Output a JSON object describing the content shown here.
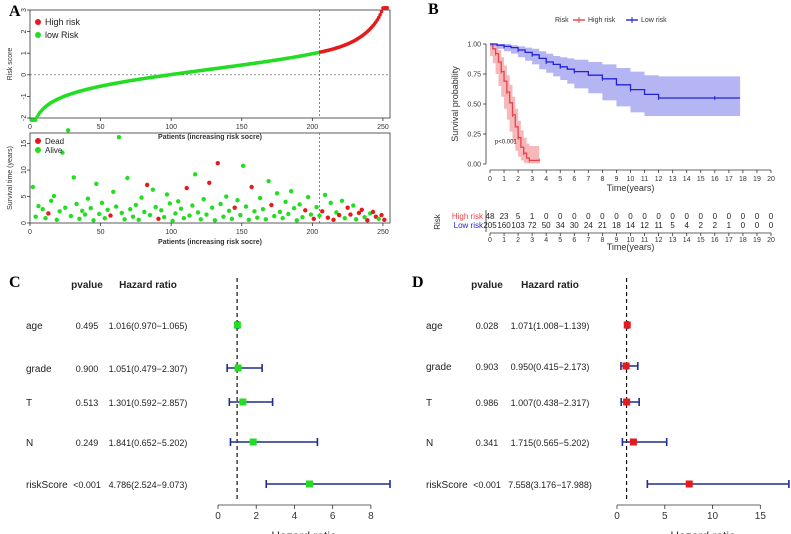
{
  "panel_labels": {
    "a": "A",
    "b": "B",
    "c": "C",
    "d": "D"
  },
  "chart_data": [
    {
      "id": "A_top",
      "type": "scatter",
      "title": "",
      "xlabel": "Patients (increasing risk socre)",
      "ylabel": "Risk score",
      "xlim": [
        0,
        255
      ],
      "ylim": [
        -2,
        3
      ],
      "xticks": [
        0,
        50,
        100,
        150,
        200,
        250
      ],
      "yticks": [
        -2,
        -1,
        0,
        1,
        2,
        3
      ],
      "cutoff_x": 205,
      "n_patients": 253,
      "n_high_risk": 48,
      "risk_score_range": [
        -2.1,
        3.1
      ],
      "legend": [
        {
          "name": "High risk",
          "color": "#e41a1c"
        },
        {
          "name": "low Risk",
          "color": "#22dd22"
        }
      ]
    },
    {
      "id": "A_bottom",
      "type": "scatter",
      "xlabel": "Patients (increasing risk socre)",
      "ylabel": "Survival time (years)",
      "xlim": [
        0,
        255
      ],
      "ylim": [
        0,
        17
      ],
      "xticks": [
        0,
        50,
        100,
        150,
        200,
        250
      ],
      "yticks": [
        0,
        5,
        10,
        15
      ],
      "cutoff_x": 205,
      "legend": [
        {
          "name": "Dead",
          "color": "#e41a1c"
        },
        {
          "name": "Alive",
          "color": "#22dd22"
        }
      ],
      "points": [
        [
          2,
          6.8,
          "a"
        ],
        [
          4,
          1.2,
          "a"
        ],
        [
          6,
          3.2,
          "a"
        ],
        [
          9,
          2.6,
          "a"
        ],
        [
          11,
          0.9,
          "a"
        ],
        [
          13,
          1.8,
          "d"
        ],
        [
          15,
          4.2,
          "a"
        ],
        [
          17,
          5.1,
          "a"
        ],
        [
          19,
          0.6,
          "a"
        ],
        [
          21,
          2.2,
          "a"
        ],
        [
          23,
          13.3,
          "a"
        ],
        [
          25,
          2.9,
          "a"
        ],
        [
          27,
          17.5,
          "a"
        ],
        [
          29,
          1.3,
          "a"
        ],
        [
          31,
          8.6,
          "a"
        ],
        [
          33,
          3.6,
          "a"
        ],
        [
          35,
          0.8,
          "a"
        ],
        [
          37,
          2.3,
          "a"
        ],
        [
          39,
          1.6,
          "a"
        ],
        [
          41,
          4.6,
          "a"
        ],
        [
          43,
          2.8,
          "a"
        ],
        [
          45,
          0.5,
          "a"
        ],
        [
          47,
          7.4,
          "a"
        ],
        [
          49,
          1.7,
          "a"
        ],
        [
          51,
          3.8,
          "a"
        ],
        [
          53,
          0.9,
          "a"
        ],
        [
          55,
          2.5,
          "a"
        ],
        [
          57,
          1.4,
          "d"
        ],
        [
          59,
          5.9,
          "a"
        ],
        [
          61,
          3.1,
          "a"
        ],
        [
          63,
          16.2,
          "a"
        ],
        [
          65,
          1.9,
          "a"
        ],
        [
          67,
          0.7,
          "a"
        ],
        [
          69,
          8.5,
          "a"
        ],
        [
          71,
          2.6,
          "a"
        ],
        [
          73,
          1.2,
          "a"
        ],
        [
          75,
          3.4,
          "a"
        ],
        [
          77,
          0.6,
          "a"
        ],
        [
          79,
          4.8,
          "a"
        ],
        [
          81,
          2.1,
          "a"
        ],
        [
          83,
          7.2,
          "d"
        ],
        [
          85,
          1.5,
          "a"
        ],
        [
          87,
          6.3,
          "a"
        ],
        [
          89,
          3.0,
          "a"
        ],
        [
          91,
          0.8,
          "d"
        ],
        [
          93,
          2.4,
          "a"
        ],
        [
          95,
          1.1,
          "a"
        ],
        [
          97,
          5.4,
          "a"
        ],
        [
          99,
          3.7,
          "a"
        ],
        [
          101,
          0.4,
          "a"
        ],
        [
          103,
          1.8,
          "a"
        ],
        [
          105,
          4.1,
          "a"
        ],
        [
          107,
          2.7,
          "a"
        ],
        [
          109,
          0.9,
          "a"
        ],
        [
          111,
          6.6,
          "d"
        ],
        [
          113,
          1.4,
          "a"
        ],
        [
          115,
          3.3,
          "a"
        ],
        [
          117,
          9.2,
          "a"
        ],
        [
          119,
          2.0,
          "a"
        ],
        [
          121,
          0.7,
          "a"
        ],
        [
          123,
          4.5,
          "a"
        ],
        [
          125,
          1.6,
          "a"
        ],
        [
          127,
          7.6,
          "d"
        ],
        [
          129,
          2.9,
          "a"
        ],
        [
          131,
          0.5,
          "a"
        ],
        [
          133,
          11.3,
          "d"
        ],
        [
          135,
          3.6,
          "a"
        ],
        [
          137,
          1.2,
          "a"
        ],
        [
          139,
          5.0,
          "a"
        ],
        [
          141,
          2.3,
          "a"
        ],
        [
          143,
          0.8,
          "a"
        ],
        [
          145,
          2.9,
          "d"
        ],
        [
          147,
          4.3,
          "a"
        ],
        [
          149,
          1.5,
          "a"
        ],
        [
          151,
          10.8,
          "a"
        ],
        [
          153,
          3.1,
          "a"
        ],
        [
          155,
          0.6,
          "a"
        ],
        [
          157,
          6.8,
          "d"
        ],
        [
          159,
          2.2,
          "a"
        ],
        [
          161,
          1.0,
          "a"
        ],
        [
          163,
          4.7,
          "a"
        ],
        [
          165,
          2.6,
          "a"
        ],
        [
          167,
          0.7,
          "a"
        ],
        [
          169,
          7.9,
          "a"
        ],
        [
          171,
          3.4,
          "d"
        ],
        [
          173,
          1.3,
          "a"
        ],
        [
          175,
          5.6,
          "a"
        ],
        [
          177,
          2.1,
          "a"
        ],
        [
          179,
          0.9,
          "a"
        ],
        [
          181,
          4.0,
          "a"
        ],
        [
          183,
          1.7,
          "a"
        ],
        [
          185,
          6.0,
          "a"
        ],
        [
          187,
          2.8,
          "a"
        ],
        [
          189,
          0.5,
          "a"
        ],
        [
          191,
          3.5,
          "a"
        ],
        [
          193,
          1.1,
          "a"
        ],
        [
          195,
          2.4,
          "d"
        ],
        [
          197,
          4.9,
          "a"
        ],
        [
          199,
          1.6,
          "a"
        ],
        [
          201,
          0.8,
          "d"
        ],
        [
          203,
          3.0,
          "a"
        ],
        [
          205,
          1.4,
          "a"
        ],
        [
          207,
          2.2,
          "d"
        ],
        [
          209,
          5.3,
          "a"
        ],
        [
          211,
          1.0,
          "d"
        ],
        [
          213,
          3.8,
          "a"
        ],
        [
          215,
          0.6,
          "d"
        ],
        [
          217,
          2.0,
          "a"
        ],
        [
          219,
          1.5,
          "d"
        ],
        [
          221,
          4.2,
          "a"
        ],
        [
          223,
          0.9,
          "a"
        ],
        [
          225,
          2.9,
          "d"
        ],
        [
          227,
          1.6,
          "d"
        ],
        [
          229,
          3.3,
          "a"
        ],
        [
          231,
          0.7,
          "a"
        ],
        [
          233,
          1.9,
          "d"
        ],
        [
          235,
          2.5,
          "d"
        ],
        [
          237,
          1.1,
          "a"
        ],
        [
          239,
          0.5,
          "d"
        ],
        [
          241,
          1.8,
          "a"
        ],
        [
          243,
          2.1,
          "d"
        ],
        [
          245,
          1.2,
          "d"
        ],
        [
          247,
          0.8,
          "a"
        ],
        [
          249,
          1.5,
          "d"
        ],
        [
          251,
          0.6,
          "d"
        ]
      ]
    },
    {
      "id": "B_km",
      "type": "line",
      "xlabel": "Time(years)",
      "ylabel": "Survival probability",
      "xlim": [
        0,
        20
      ],
      "ylim": [
        0,
        1
      ],
      "xticks": [
        0,
        1,
        2,
        3,
        4,
        5,
        6,
        7,
        8,
        9,
        10,
        11,
        12,
        13,
        14,
        15,
        16,
        17,
        18,
        19,
        20
      ],
      "yticks": [
        0.0,
        0.25,
        0.5,
        0.75,
        1.0
      ],
      "ytick_labels": [
        "0.00",
        "0.25",
        "0.50",
        "0.75",
        "1.00"
      ],
      "legend_title": "Risk",
      "pvalue_text": "p<0.001",
      "series": [
        {
          "name": "High risk",
          "color": "#e8424a",
          "fill": "#f4a0a3",
          "x": [
            0,
            0.2,
            0.4,
            0.6,
            0.8,
            1.0,
            1.2,
            1.4,
            1.6,
            1.8,
            2.0,
            2.2,
            2.4,
            2.6,
            2.8,
            3.0,
            3.5
          ],
          "y": [
            1.0,
            0.96,
            0.92,
            0.85,
            0.77,
            0.69,
            0.6,
            0.51,
            0.41,
            0.31,
            0.22,
            0.14,
            0.09,
            0.05,
            0.03,
            0.03,
            0.03
          ],
          "lower": [
            1.0,
            0.9,
            0.84,
            0.75,
            0.65,
            0.56,
            0.46,
            0.37,
            0.27,
            0.18,
            0.11,
            0.06,
            0.03,
            0.01,
            0.005,
            0.005,
            0.005
          ],
          "upper": [
            1.0,
            1.0,
            0.99,
            0.95,
            0.89,
            0.82,
            0.74,
            0.66,
            0.56,
            0.46,
            0.36,
            0.28,
            0.22,
            0.17,
            0.15,
            0.15,
            0.15
          ]
        },
        {
          "name": "Low risk",
          "color": "#2323d6",
          "fill": "#9c9cf0",
          "x": [
            0,
            0.5,
            1.0,
            1.5,
            2.0,
            2.5,
            3.0,
            3.5,
            4.0,
            4.5,
            5.0,
            5.5,
            6.0,
            7.0,
            8.0,
            9.0,
            10.0,
            11.0,
            12.0,
            14.0,
            16.0,
            17.8
          ],
          "y": [
            1.0,
            0.99,
            0.98,
            0.97,
            0.95,
            0.93,
            0.91,
            0.88,
            0.85,
            0.83,
            0.81,
            0.79,
            0.77,
            0.74,
            0.71,
            0.66,
            0.62,
            0.58,
            0.55,
            0.55,
            0.55,
            0.55
          ],
          "lower": [
            1.0,
            0.98,
            0.96,
            0.94,
            0.92,
            0.89,
            0.86,
            0.83,
            0.79,
            0.76,
            0.73,
            0.7,
            0.67,
            0.63,
            0.59,
            0.53,
            0.48,
            0.43,
            0.4,
            0.4,
            0.4,
            0.4
          ],
          "upper": [
            1.0,
            1.0,
            1.0,
            0.99,
            0.98,
            0.97,
            0.96,
            0.94,
            0.92,
            0.9,
            0.89,
            0.88,
            0.87,
            0.85,
            0.83,
            0.8,
            0.77,
            0.74,
            0.73,
            0.73,
            0.73,
            0.73
          ]
        }
      ]
    },
    {
      "id": "B_table",
      "type": "table",
      "row_title": "Risk",
      "xlabel": "Time(years)",
      "columns": [
        0,
        1,
        2,
        3,
        4,
        5,
        6,
        7,
        8,
        9,
        10,
        11,
        12,
        13,
        14,
        15,
        16,
        17,
        18,
        19,
        20
      ],
      "rows": [
        {
          "label": "High risk",
          "color": "#e8424a",
          "values": [
            "48",
            "23",
            "5",
            "1",
            "0",
            "0",
            "0",
            "0",
            "0",
            "0",
            "0",
            "0",
            "0",
            "0",
            "0",
            "0",
            "0",
            "0",
            "0",
            "0",
            "0"
          ]
        },
        {
          "label": "Low risk",
          "color": "#2323d6",
          "values": [
            "205",
            "160",
            "103",
            "72",
            "50",
            "34",
            "30",
            "24",
            "21",
            "18",
            "14",
            "12",
            "11",
            "5",
            "4",
            "2",
            "2",
            "1",
            "0",
            "0",
            "0"
          ]
        }
      ]
    },
    {
      "id": "C_forest",
      "type": "forest",
      "header_pvalue": "pvalue",
      "header_hr": "Hazard ratio",
      "xlabel": "Hazard ratio",
      "xlim": [
        0,
        9
      ],
      "xticks": [
        0,
        2,
        4,
        6,
        8
      ],
      "ref_line": 1,
      "marker_color": "#22dd22",
      "ci_color": "#1f2e8c",
      "rows": [
        {
          "label": "age",
          "pvalue": "0.495",
          "text": "1.016(0.970−1.065)",
          "hr": 1.016,
          "lo": 0.97,
          "hi": 1.065
        },
        {
          "label": "grade",
          "pvalue": "0.900",
          "text": "1.051(0.479−2.307)",
          "hr": 1.051,
          "lo": 0.479,
          "hi": 2.307
        },
        {
          "label": "T",
          "pvalue": "0.513",
          "text": "1.301(0.592−2.857)",
          "hr": 1.301,
          "lo": 0.592,
          "hi": 2.857
        },
        {
          "label": "N",
          "pvalue": "0.249",
          "text": "1.841(0.652−5.202)",
          "hr": 1.841,
          "lo": 0.652,
          "hi": 5.202
        },
        {
          "label": "riskScore",
          "pvalue": "<0.001",
          "text": "4.786(2.524−9.073)",
          "hr": 4.786,
          "lo": 2.524,
          "hi": 9.073
        }
      ]
    },
    {
      "id": "D_forest",
      "type": "forest",
      "header_pvalue": "pvalue",
      "header_hr": "Hazard ratio",
      "xlabel": "Hazard ratio",
      "xlim": [
        0,
        18
      ],
      "xticks": [
        0,
        5,
        10,
        15
      ],
      "ref_line": 1,
      "marker_color": "#e41a1c",
      "ci_color": "#1f2e8c",
      "rows": [
        {
          "label": "age",
          "pvalue": "0.028",
          "text": "1.071(1.008−1.139)",
          "hr": 1.071,
          "lo": 1.008,
          "hi": 1.139
        },
        {
          "label": "grade",
          "pvalue": "0.903",
          "text": "0.950(0.415−2.173)",
          "hr": 0.95,
          "lo": 0.415,
          "hi": 2.173
        },
        {
          "label": "T",
          "pvalue": "0.986",
          "text": "1.007(0.438−2.317)",
          "hr": 1.007,
          "lo": 0.438,
          "hi": 2.317
        },
        {
          "label": "N",
          "pvalue": "0.341",
          "text": "1.715(0.565−5.202)",
          "hr": 1.715,
          "lo": 0.565,
          "hi": 5.202
        },
        {
          "label": "riskScore",
          "pvalue": "<0.001",
          "text": "7.558(3.176−17.988)",
          "hr": 7.558,
          "lo": 3.176,
          "hi": 17.988
        }
      ]
    }
  ]
}
